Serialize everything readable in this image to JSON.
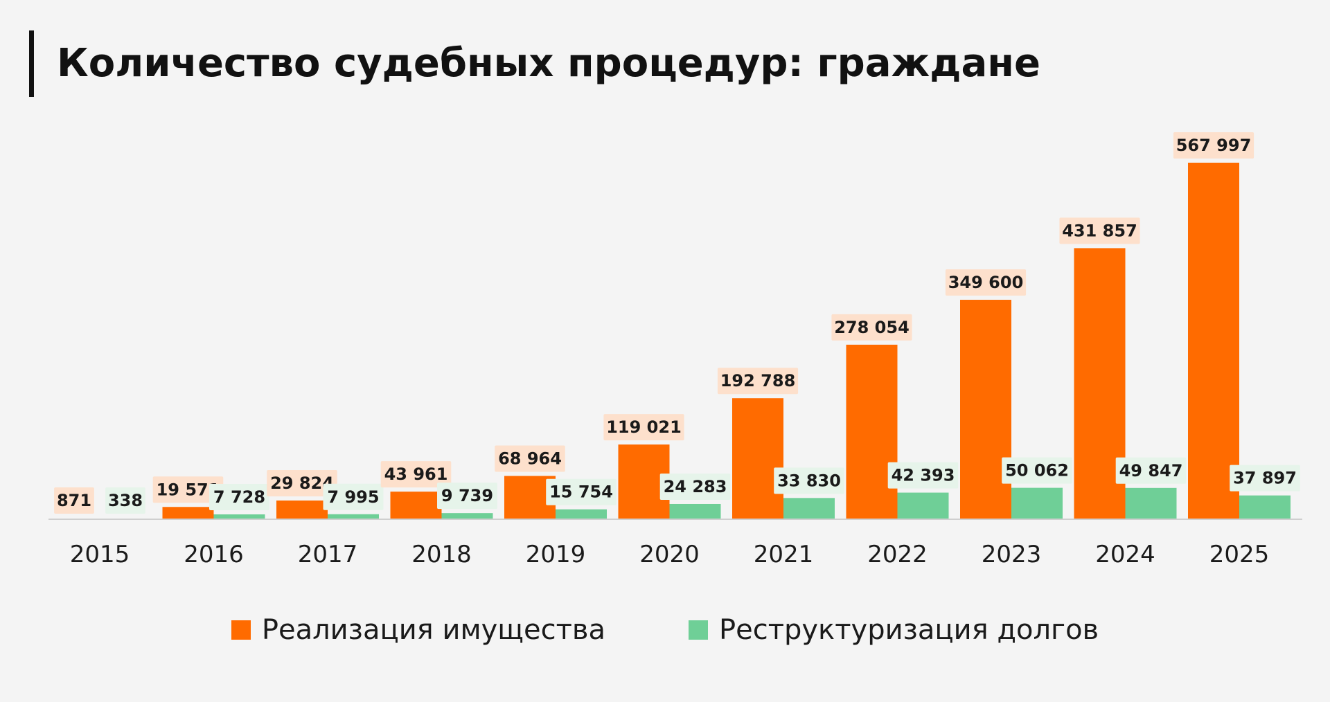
{
  "title": "Количество судебных процедур: граждане",
  "colors": {
    "property_sale": "#ff6b00",
    "debt_restructuring": "#6fcf97",
    "property_label_bg": "#fde0cc",
    "restructuring_label_bg": "#e6f4ea"
  },
  "chart_data": {
    "type": "bar",
    "title": "Количество судебных процедур: граждане",
    "xlabel": "",
    "ylabel": "",
    "grid": false,
    "legend_position": "bottom",
    "ylim": [
      0,
      600000
    ],
    "categories": [
      "2015",
      "2016",
      "2017",
      "2018",
      "2019",
      "2020",
      "2021",
      "2022",
      "2023",
      "2024",
      "2025"
    ],
    "series": [
      {
        "name": "Реализация имущества",
        "values": [
          871,
          19571,
          29824,
          43961,
          68964,
          119021,
          192788,
          278054,
          349600,
          431857,
          567997
        ],
        "labels": [
          "871",
          "19 571",
          "29 824",
          "43 961",
          "68 964",
          "119 021",
          "192 788",
          "278 054",
          "349 600",
          "431 857",
          "567 997"
        ]
      },
      {
        "name": "Реструктуризация долгов",
        "values": [
          338,
          7728,
          7995,
          9739,
          15754,
          24283,
          33830,
          42393,
          50062,
          49847,
          37897
        ],
        "labels": [
          "338",
          "7 728",
          "7 995",
          "9 739",
          "15 754",
          "24 283",
          "33 830",
          "42 393",
          "50 062",
          "49 847",
          "37 897"
        ]
      }
    ]
  },
  "legend": {
    "items": [
      {
        "label": "Реализация имущества",
        "icon": "orange-square-swatch"
      },
      {
        "label": "Реструктуризация долгов",
        "icon": "green-square-swatch"
      }
    ]
  }
}
